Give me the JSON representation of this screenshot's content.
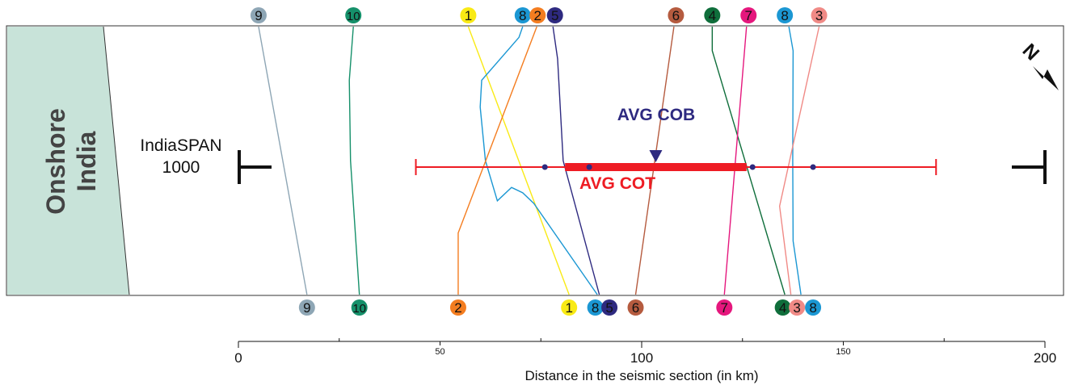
{
  "onshore_label": [
    "Onshore",
    "India"
  ],
  "section": {
    "name": "IndiaSPAN",
    "number": "1000"
  },
  "avg_cob_label": "AVG COB",
  "avg_cot_label": "AVG COT",
  "north_label": "N",
  "colors": {
    "cot": "#ee1c24",
    "cob": "#2e2a80",
    "onshore_fill": "#c8e3d9"
  },
  "axis": {
    "title": "Distance in the seismic section (in km)",
    "min": 0,
    "max": 200,
    "major_ticks": [
      0,
      100,
      200
    ],
    "minor_ticks": [
      50,
      150
    ],
    "minor_tick_marks": [
      25,
      75,
      125,
      175
    ]
  },
  "avg_cot": {
    "range_km": [
      44,
      173
    ],
    "thick_range_km": [
      81,
      126
    ],
    "marker_km": [
      76,
      87,
      127.5,
      142.5
    ]
  },
  "avg_cob": {
    "position_km": 103.5
  },
  "chart_data": {
    "type": "diagram",
    "title": "",
    "xlabel": "Distance in the seismic section (in km)",
    "xlim": [
      0,
      200
    ],
    "lines": [
      {
        "id": "9",
        "color": "#8ea6b5",
        "top_km": 5,
        "bottom_km": 17
      },
      {
        "id": "10",
        "color": "#15906a",
        "top_km": 28,
        "bottom_km": 30
      },
      {
        "id": "1",
        "color": "#f9ea15",
        "top_km": 57,
        "bottom_km": 82
      },
      {
        "id": "8",
        "color": "#1b97d3",
        "top_km": 70.5,
        "bottom_km": 89
      },
      {
        "id": "2",
        "color": "#f47d20",
        "top_km": 74,
        "bottom_km": 54.5
      },
      {
        "id": "5",
        "color": "#2e2a80",
        "top_km": 78,
        "bottom_km": 89.5
      },
      {
        "id": "6",
        "color": "#b55b3f",
        "top_km": 108,
        "bottom_km": 98.5
      },
      {
        "id": "4",
        "color": "#0f6e3b",
        "top_km": 117.5,
        "bottom_km": 135.5
      },
      {
        "id": "7",
        "color": "#e5177d",
        "top_km": 126,
        "bottom_km": 120.5
      },
      {
        "id": "8b",
        "label": "8",
        "color": "#1b97d3",
        "top_km": 136.5,
        "bottom_km": 139.5
      },
      {
        "id": "3",
        "color": "#f08a86",
        "top_km": 144,
        "bottom_km": 137
      }
    ],
    "top_labels": [
      {
        "text": "9",
        "km": 5,
        "color": "#8ea6b5"
      },
      {
        "text": "10",
        "km": 28.5,
        "color": "#15906a"
      },
      {
        "text": "1",
        "km": 57,
        "color": "#f9ea15"
      },
      {
        "text": "8",
        "km": 70.5,
        "color": "#1b97d3"
      },
      {
        "text": "2",
        "km": 74.2,
        "color": "#f47d20"
      },
      {
        "text": "5",
        "km": 78.5,
        "color": "#2e2a80"
      },
      {
        "text": "6",
        "km": 108.5,
        "color": "#b55b3f"
      },
      {
        "text": "4",
        "km": 117.5,
        "color": "#0f6e3b"
      },
      {
        "text": "7",
        "km": 126.5,
        "color": "#e5177d"
      },
      {
        "text": "8",
        "km": 135.5,
        "color": "#1b97d3"
      },
      {
        "text": "3",
        "km": 144,
        "color": "#f08a86"
      }
    ],
    "bottom_labels": [
      {
        "text": "9",
        "km": 17,
        "color": "#8ea6b5"
      },
      {
        "text": "10",
        "km": 30,
        "color": "#15906a"
      },
      {
        "text": "2",
        "km": 54.5,
        "color": "#f47d20"
      },
      {
        "text": "1",
        "km": 82,
        "color": "#f9ea15"
      },
      {
        "text": "8",
        "km": 88.5,
        "color": "#1b97d3"
      },
      {
        "text": "5",
        "km": 92,
        "color": "#2e2a80"
      },
      {
        "text": "6",
        "km": 98.5,
        "color": "#b55b3f"
      },
      {
        "text": "7",
        "km": 120.5,
        "color": "#e5177d"
      },
      {
        "text": "4",
        "km": 135,
        "color": "#0f6e3b"
      },
      {
        "text": "3",
        "km": 138.5,
        "color": "#f08a86"
      },
      {
        "text": "8",
        "km": 142.5,
        "color": "#1b97d3"
      }
    ]
  }
}
